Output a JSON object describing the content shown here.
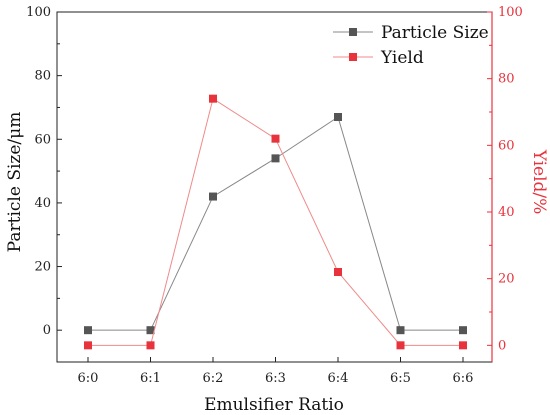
{
  "chart_data": {
    "type": "line",
    "categories": [
      "6:0",
      "6:1",
      "6:2",
      "6:3",
      "6:4",
      "6:5",
      "6:6"
    ],
    "xlabel": "Emulsifier Ratio",
    "ylabel_left": "Particle Size/μm",
    "ylabel_right": "Yield/%",
    "ylim_left": [
      -10,
      100
    ],
    "ylim_right": [
      -5,
      100
    ],
    "yticks_left": [
      0,
      20,
      40,
      60,
      80,
      100
    ],
    "yticks_right": [
      0,
      20,
      40,
      60,
      80,
      100
    ],
    "grid": false,
    "legend_position": "top-right",
    "series": [
      {
        "name": "Particle Size",
        "axis": "left",
        "color": "#555555",
        "line_color": "#888888",
        "marker": "square",
        "values": [
          0,
          0,
          42,
          54,
          67,
          0,
          0
        ]
      },
      {
        "name": "Yield",
        "axis": "right",
        "color": "#e8323c",
        "line_color": "#f08a8a",
        "marker": "square",
        "values": [
          0,
          0,
          74,
          62,
          22,
          0,
          0
        ]
      }
    ],
    "colors": {
      "right_axis": "#e8323c",
      "left_axis": "#222222"
    }
  }
}
